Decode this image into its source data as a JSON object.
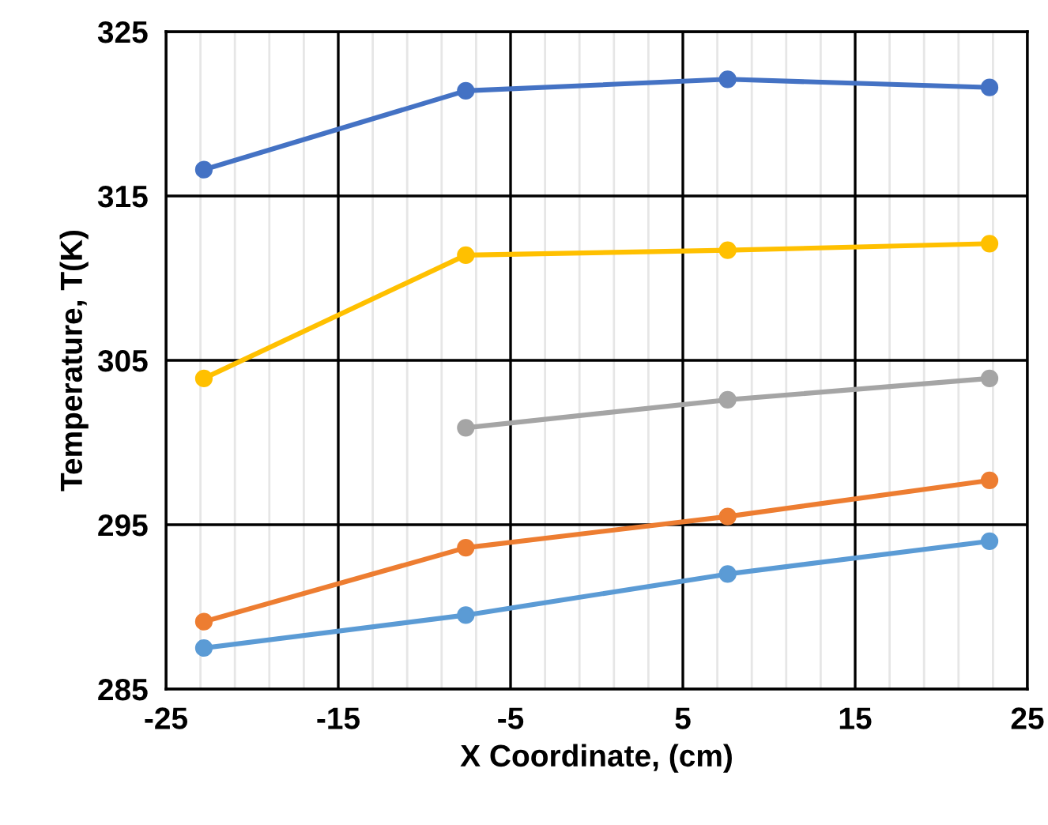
{
  "chart_data": {
    "type": "line",
    "xlabel": "X Coordinate, (cm)",
    "ylabel": "Temperature, T(K)",
    "x": [
      -22.8,
      -7.6,
      7.6,
      22.8
    ],
    "series": [
      {
        "color": "#4472c4",
        "values": [
          316.6,
          321.4,
          322.1,
          321.6
        ]
      },
      {
        "color": "#ffc000",
        "values": [
          303.9,
          311.4,
          311.7,
          312.1
        ]
      },
      {
        "color": "#a5a5a5",
        "values": [
          null,
          300.9,
          302.6,
          303.9
        ]
      },
      {
        "color": "#ed7d31",
        "values": [
          289.1,
          293.6,
          295.5,
          297.7
        ]
      },
      {
        "color": "#5b9bd5",
        "values": [
          287.5,
          289.5,
          292.0,
          294.0
        ]
      }
    ],
    "xlim": [
      -25,
      25
    ],
    "xticks": [
      -25,
      -15,
      -5,
      5,
      15,
      25
    ],
    "ylim": [
      285,
      325
    ],
    "yticks": [
      285,
      295,
      305,
      315,
      325
    ],
    "grid": true,
    "marker": "circle",
    "line_style": "solid",
    "legend": false
  }
}
